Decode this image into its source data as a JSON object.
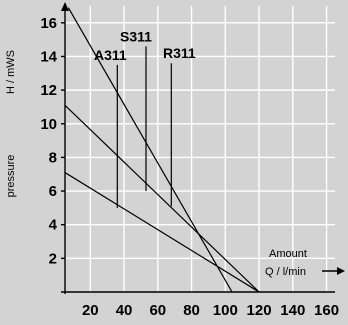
{
  "chart_data": {
    "type": "line",
    "x": {
      "label": "Amount",
      "unit": "Q / l/min",
      "ticks": [
        20,
        40,
        60,
        80,
        100,
        120,
        140,
        160
      ],
      "range": [
        5,
        165
      ]
    },
    "y": {
      "label": "pressure",
      "unit": "H / mWS",
      "ticks": [
        2,
        4,
        6,
        8,
        10,
        12,
        14,
        16
      ],
      "range": [
        0,
        17
      ]
    },
    "grid": true,
    "series": [
      {
        "name": "A311",
        "points": [
          [
            5,
            7.1
          ],
          [
            120,
            0
          ]
        ],
        "marker": {
          "x": 36,
          "y_top": 13.5,
          "y_bottom": 5
        }
      },
      {
        "name": "S311",
        "points": [
          [
            5,
            11.1
          ],
          [
            120,
            0
          ]
        ],
        "marker": {
          "x": 53,
          "y_top": 14.6,
          "y_bottom": 6
        }
      },
      {
        "name": "R311",
        "points": [
          [
            7,
            16.9
          ],
          [
            104,
            0
          ]
        ],
        "marker": {
          "x": 68,
          "y_top": 13.6,
          "y_bottom": 5.1
        }
      }
    ]
  }
}
